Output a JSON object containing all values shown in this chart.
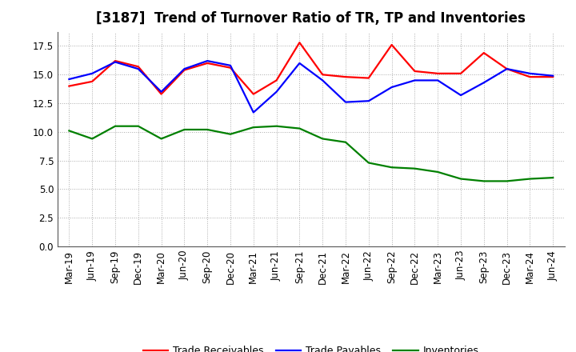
{
  "title": "[3187]  Trend of Turnover Ratio of TR, TP and Inventories",
  "x_labels": [
    "Mar-19",
    "Jun-19",
    "Sep-19",
    "Dec-19",
    "Mar-20",
    "Jun-20",
    "Sep-20",
    "Dec-20",
    "Mar-21",
    "Jun-21",
    "Sep-21",
    "Dec-21",
    "Mar-22",
    "Jun-22",
    "Sep-22",
    "Dec-22",
    "Mar-23",
    "Jun-23",
    "Sep-23",
    "Dec-23",
    "Mar-24",
    "Jun-24"
  ],
  "trade_receivables": [
    14.0,
    14.4,
    16.2,
    15.7,
    13.3,
    15.4,
    16.0,
    15.6,
    13.3,
    14.5,
    17.8,
    15.0,
    14.8,
    14.7,
    17.6,
    15.3,
    15.1,
    15.1,
    16.9,
    15.5,
    14.8,
    14.8
  ],
  "trade_payables": [
    14.6,
    15.1,
    16.1,
    15.5,
    13.5,
    15.5,
    16.2,
    15.8,
    11.7,
    13.5,
    16.0,
    14.5,
    12.6,
    12.7,
    13.9,
    14.5,
    14.5,
    13.2,
    14.3,
    15.5,
    15.1,
    14.9
  ],
  "inventories": [
    10.1,
    9.4,
    10.5,
    10.5,
    9.4,
    10.2,
    10.2,
    9.8,
    10.4,
    10.5,
    10.3,
    9.4,
    9.1,
    7.3,
    6.9,
    6.8,
    6.5,
    5.9,
    5.7,
    5.7,
    5.9,
    6.0
  ],
  "ylim": [
    0,
    18.75
  ],
  "yticks": [
    0.0,
    2.5,
    5.0,
    7.5,
    10.0,
    12.5,
    15.0,
    17.5
  ],
  "color_tr": "#ff0000",
  "color_tp": "#0000ff",
  "color_inv": "#008000",
  "legend_labels": [
    "Trade Receivables",
    "Trade Payables",
    "Inventories"
  ],
  "background_color": "#ffffff",
  "grid_color": "#aaaaaa",
  "title_fontsize": 12,
  "tick_fontsize": 8.5,
  "legend_fontsize": 9
}
